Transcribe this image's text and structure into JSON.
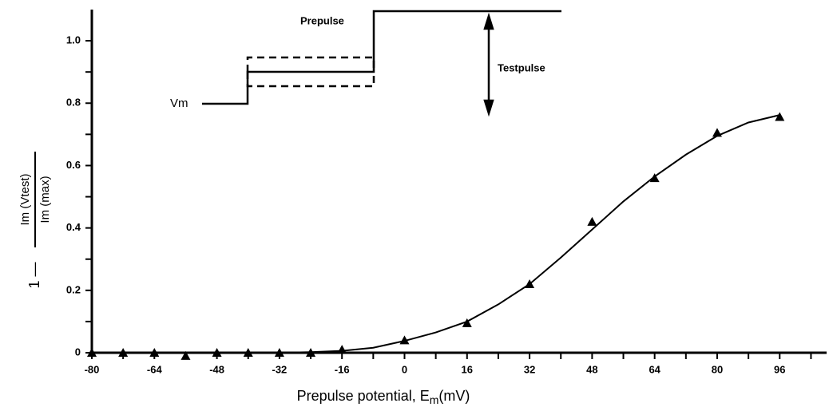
{
  "chart_data": {
    "type": "scatter",
    "x_label": [
      "Prepulse potential,  E",
      "m",
      "(mV)"
    ],
    "y_label": {
      "prefix": "1 —",
      "numerator": "Im  (Vtest)",
      "denominator": "Im  (max)"
    },
    "annotations": {
      "prepulse": "Prepulse",
      "testpulse": "Testpulse",
      "vm": "Vm"
    },
    "xlim": [
      -80,
      108
    ],
    "ylim": [
      0,
      1.1
    ],
    "xticks": [
      -80,
      -64,
      -48,
      -32,
      -16,
      0,
      16,
      32,
      48,
      64,
      80,
      96
    ],
    "xminorticks": [
      -72,
      -56,
      -40,
      -24,
      -8,
      8,
      24,
      40,
      56,
      72,
      88,
      104
    ],
    "yticks": [
      0,
      0.2,
      0.4,
      0.6,
      0.8,
      {
        "value": 1,
        "label": "1.0"
      }
    ],
    "yminorticks": [
      0.1,
      0.3,
      0.5,
      0.7,
      0.9
    ],
    "series": [
      {
        "type": "scatter",
        "color": "#000000",
        "x": [
          -80,
          -72,
          -64,
          -56,
          -48,
          -40,
          -32,
          -24,
          -16,
          0,
          16,
          32,
          48,
          64,
          80,
          96
        ],
        "values": [
          0,
          0,
          0,
          -0.01,
          0,
          0,
          0,
          0,
          0.01,
          0.04,
          0.095,
          0.22,
          0.42,
          0.56,
          0.705,
          0.756
        ]
      },
      {
        "type": "line",
        "color": "#000000",
        "x": [
          -80,
          -32,
          -24,
          -16,
          -8,
          0,
          8,
          16,
          24,
          32,
          40,
          48,
          56,
          64,
          72,
          80,
          88,
          96
        ],
        "values": [
          0,
          0,
          0.002,
          0.006,
          0.016,
          0.038,
          0.065,
          0.1,
          0.155,
          0.22,
          0.305,
          0.395,
          0.485,
          0.565,
          0.635,
          0.695,
          0.738,
          0.762
        ]
      }
    ]
  }
}
